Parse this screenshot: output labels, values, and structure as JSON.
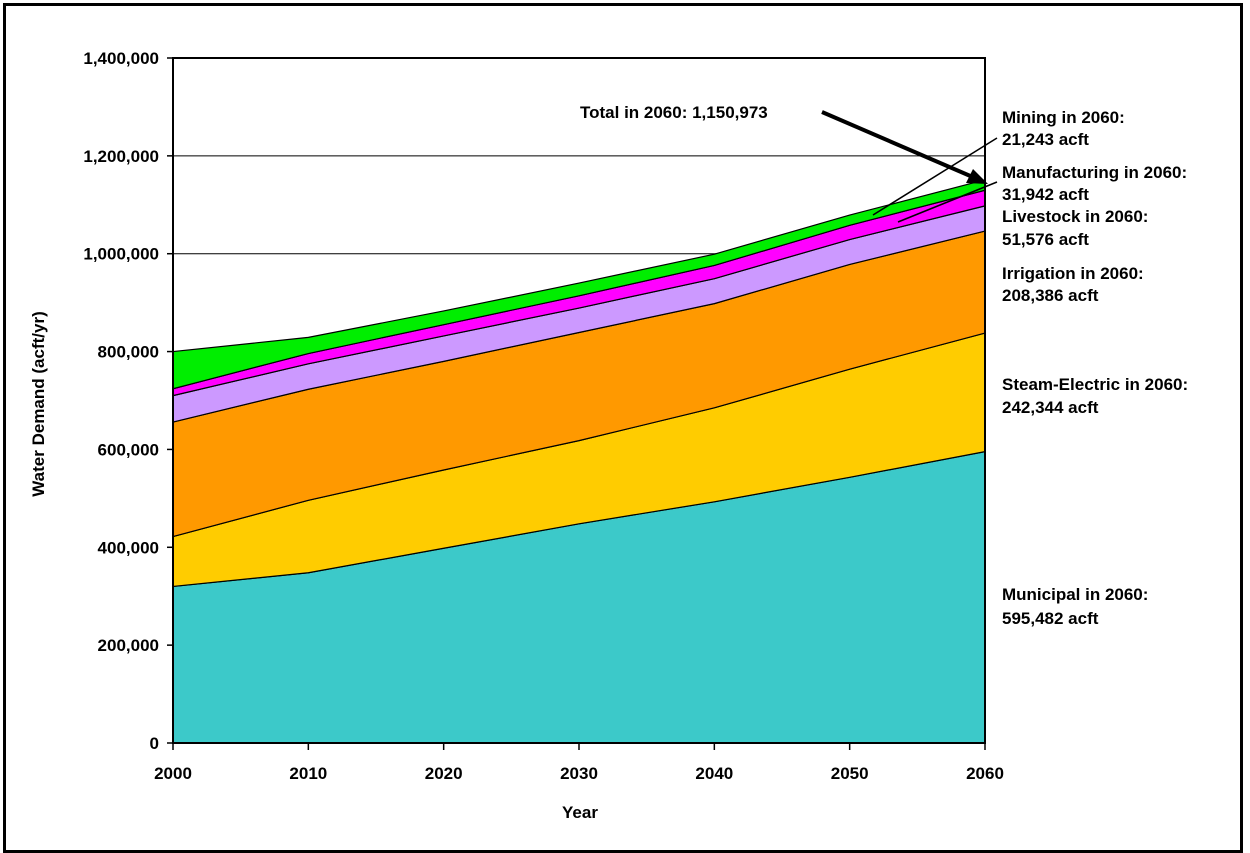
{
  "chart_data": {
    "type": "area",
    "stacked": true,
    "xlabel": "Year",
    "ylabel": "Water Demand (acft/yr)",
    "x": [
      2000,
      2010,
      2020,
      2030,
      2040,
      2050,
      2060
    ],
    "xlim": [
      2000,
      2060
    ],
    "ylim": [
      0,
      1400000
    ],
    "x_ticks": [
      "2000",
      "2010",
      "2020",
      "2030",
      "2040",
      "2050",
      "2060"
    ],
    "y_ticks": [
      "0",
      "200,000",
      "400,000",
      "600,000",
      "800,000",
      "1,000,000",
      "1,200,000",
      "1,400,000"
    ],
    "grid": "horizontal",
    "series": [
      {
        "key": "municipal",
        "color": "#3cc9c9",
        "values": [
          320000,
          348000,
          398000,
          448000,
          493000,
          543000,
          595482
        ]
      },
      {
        "key": "steam",
        "color": "#ffcc00",
        "values": [
          102000,
          148000,
          160000,
          170000,
          192000,
          221000,
          242344
        ]
      },
      {
        "key": "irrigation",
        "color": "#ff9900",
        "values": [
          234000,
          227000,
          222000,
          221000,
          213000,
          214000,
          208386
        ]
      },
      {
        "key": "livestock",
        "color": "#cc99ff",
        "values": [
          54000,
          52000,
          52000,
          50000,
          51000,
          51000,
          51576
        ]
      },
      {
        "key": "manufacturing",
        "color": "#ff00ff",
        "values": [
          14000,
          21000,
          23000,
          25000,
          27000,
          29000,
          31942
        ]
      },
      {
        "key": "mining",
        "color": "#00ee00",
        "values": [
          76000,
          33000,
          28000,
          26000,
          23000,
          21000,
          21243
        ]
      }
    ],
    "annotations": {
      "total": "Total in 2060:  1,150,973",
      "mining_1": "Mining in 2060:",
      "mining_2": "21,243 acft",
      "manufacturing_1": "Manufacturing in 2060:",
      "manufacturing_2": "31,942 acft",
      "livestock_1": "Livestock in 2060:",
      "livestock_2": "51,576 acft",
      "irrigation_1": "Irrigation in 2060:",
      "irrigation_2": "208,386 acft",
      "steam_1": "Steam-Electric in 2060:",
      "steam_2": "242,344 acft",
      "municipal_1": "Municipal in 2060:",
      "municipal_2": "595,482 acft"
    }
  }
}
